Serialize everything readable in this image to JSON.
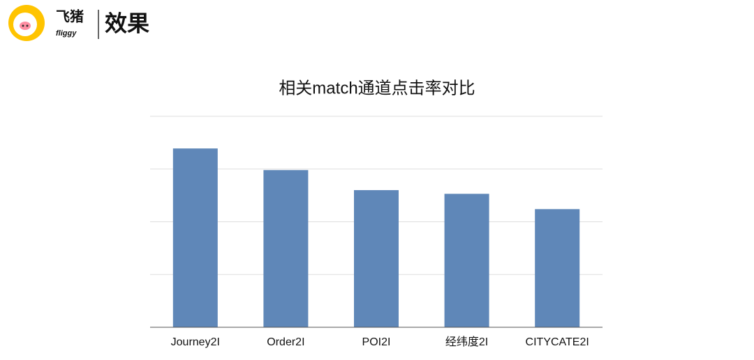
{
  "header": {
    "brand": "飞猪",
    "brand_en": "fliggy",
    "title": "效果"
  },
  "chart_data": {
    "type": "bar",
    "title": "相关match通道点击率对比",
    "categories": [
      "Journey2I",
      "Order2I",
      "POI2I",
      "经纬度2I",
      "CITYCATE2I"
    ],
    "values": [
      3.39,
      2.98,
      2.6,
      2.53,
      2.24
    ],
    "color": "#5f87b8",
    "ylim": [
      0,
      4
    ],
    "yticks": [
      0,
      1,
      2,
      3,
      4
    ],
    "grid": true
  }
}
